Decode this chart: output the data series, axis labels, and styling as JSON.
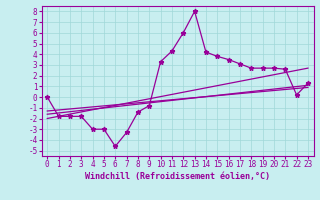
{
  "title": "",
  "xlabel": "Windchill (Refroidissement éolien,°C)",
  "bg_color": "#c8eef0",
  "line_color": "#990099",
  "grid_color": "#a0d8d8",
  "xlim": [
    -0.5,
    23.5
  ],
  "ylim": [
    -5.5,
    8.5
  ],
  "xtick_labels": [
    "0",
    "1",
    "2",
    "3",
    "4",
    "5",
    "6",
    "7",
    "8",
    "9",
    "10",
    "11",
    "12",
    "13",
    "14",
    "15",
    "16",
    "17",
    "18",
    "19",
    "20",
    "21",
    "22",
    "23"
  ],
  "xtick_pos": [
    0,
    1,
    2,
    3,
    4,
    5,
    6,
    7,
    8,
    9,
    10,
    11,
    12,
    13,
    14,
    15,
    16,
    17,
    18,
    19,
    20,
    21,
    22,
    23
  ],
  "ytick_pos": [
    -5,
    -4,
    -3,
    -2,
    -1,
    0,
    1,
    2,
    3,
    4,
    5,
    6,
    7,
    8
  ],
  "ytick_labels": [
    "-5",
    "-4",
    "-3",
    "-2",
    "-1",
    "0",
    "1",
    "2",
    "3",
    "4",
    "5",
    "6",
    "7",
    "8"
  ],
  "main_x": [
    0,
    1,
    2,
    3,
    4,
    5,
    6,
    7,
    8,
    9,
    10,
    11,
    12,
    13,
    14,
    15,
    16,
    17,
    18,
    19,
    20,
    21,
    22,
    23
  ],
  "main_y": [
    0.0,
    -1.8,
    -1.8,
    -1.8,
    -3.0,
    -3.0,
    -4.6,
    -3.3,
    -1.4,
    -0.8,
    3.3,
    4.3,
    6.0,
    8.0,
    4.2,
    3.8,
    3.5,
    3.1,
    2.7,
    2.7,
    2.7,
    2.6,
    0.2,
    1.3
  ],
  "trend1_x": [
    0,
    23
  ],
  "trend1_y": [
    -2.0,
    2.7
  ],
  "trend2_x": [
    0,
    23
  ],
  "trend2_y": [
    -1.6,
    1.1
  ],
  "trend3_x": [
    0,
    23
  ],
  "trend3_y": [
    -1.3,
    0.9
  ],
  "marker_size": 3.5,
  "line_width": 0.9,
  "tick_fontsize": 5.5,
  "xlabel_fontsize": 6.0
}
